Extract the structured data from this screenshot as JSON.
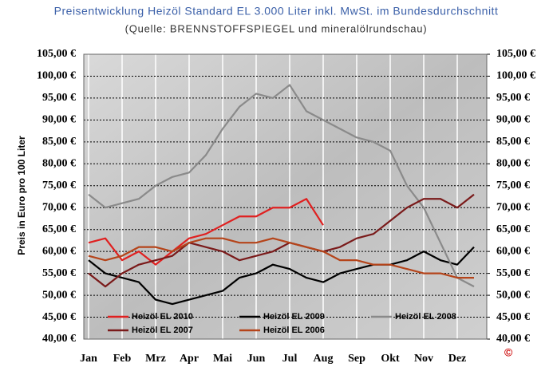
{
  "chart_data": {
    "type": "line",
    "title": "Preisentwicklung Heizöl Standard EL 3.000 Liter inkl. MwSt. im Bundesdurchschnitt",
    "subtitle": "(Quelle: BRENNSTOFFSPIEGEL und mineralölrundschau)",
    "y_label": "Preis in Euro pro 100 Liter",
    "logo": "©",
    "categories": [
      "Jan",
      null,
      "Feb",
      null,
      "Mrz",
      null,
      "Apr",
      null,
      "Mai",
      null,
      "Jun",
      null,
      "Jul",
      null,
      "Aug",
      null,
      "Sep",
      null,
      "Okt",
      null,
      "Nov",
      null,
      "Dez",
      null
    ],
    "series": [
      {
        "name": "Heizöl EL 2010",
        "color": "#e02020",
        "values": [
          62,
          63,
          58,
          60,
          57,
          60,
          63,
          64,
          66,
          68,
          68,
          70,
          70,
          72,
          66,
          null,
          null,
          null,
          null,
          null,
          null,
          null,
          null,
          null
        ]
      },
      {
        "name": "Heizöl EL 2009",
        "color": "#000000",
        "values": [
          58,
          55,
          54,
          53,
          49,
          48,
          49,
          50,
          51,
          54,
          55,
          57,
          56,
          54,
          53,
          55,
          56,
          57,
          57,
          58,
          60,
          58,
          57,
          61
        ]
      },
      {
        "name": "Heizöl EL 2008",
        "color": "#8a8a8a",
        "values": [
          73,
          70,
          71,
          72,
          75,
          77,
          78,
          82,
          88,
          93,
          96,
          95,
          98,
          92,
          90,
          88,
          86,
          85,
          83,
          75,
          70,
          62,
          54,
          52
        ]
      },
      {
        "name": "Heizöl EL 2007",
        "color": "#7a1a1a",
        "values": [
          55,
          52,
          55,
          57,
          58,
          59,
          62,
          61,
          60,
          58,
          59,
          60,
          62,
          61,
          60,
          61,
          63,
          64,
          67,
          70,
          72,
          72,
          70,
          73
        ]
      },
      {
        "name": "Heizöl EL 2006",
        "color": "#b5441a",
        "values": [
          59,
          58,
          59,
          61,
          61,
          60,
          62,
          63,
          63,
          62,
          62,
          63,
          62,
          61,
          60,
          58,
          58,
          57,
          57,
          56,
          55,
          55,
          54,
          54
        ]
      }
    ],
    "ylim": [
      40,
      105
    ],
    "yticks": [
      {
        "value": 40,
        "label": "40,00 €"
      },
      {
        "value": 45,
        "label": "45,00 €"
      },
      {
        "value": 50,
        "label": "50,00 €"
      },
      {
        "value": 55,
        "label": "55,00 €"
      },
      {
        "value": 60,
        "label": "60,00 €"
      },
      {
        "value": 65,
        "label": "65,00 €"
      },
      {
        "value": 70,
        "label": "70,00 €"
      },
      {
        "value": 75,
        "label": "75,00 €"
      },
      {
        "value": 80,
        "label": "80,00 €"
      },
      {
        "value": 85,
        "label": "85,00 €"
      },
      {
        "value": 90,
        "label": "90,00 €"
      },
      {
        "value": 95,
        "label": "95,00 €"
      },
      {
        "value": 100,
        "label": "100,00 €"
      },
      {
        "value": 105,
        "label": "105,00 €"
      }
    ],
    "y2lim": [
      40,
      105
    ],
    "y2ticks": [
      {
        "value": 40,
        "label": "40,00 €"
      },
      {
        "value": 45,
        "label": "45,00 €"
      },
      {
        "value": 50,
        "label": "50,00 €"
      },
      {
        "value": 55,
        "label": "55,00 €"
      },
      {
        "value": 60,
        "label": "60,00 €"
      },
      {
        "value": 65,
        "label": "65,00 €"
      },
      {
        "value": 70,
        "label": "70,00 €"
      },
      {
        "value": 75,
        "label": "75,00 €"
      },
      {
        "value": 80,
        "label": "80,00 €"
      },
      {
        "value": 85,
        "label": "85,00 €"
      },
      {
        "value": 90,
        "label": "90,00 €"
      },
      {
        "value": 95,
        "label": "95,00 €"
      },
      {
        "value": 100,
        "label": "100,00 €"
      },
      {
        "value": 105,
        "label": "105,00 €"
      }
    ],
    "grid": true
  }
}
